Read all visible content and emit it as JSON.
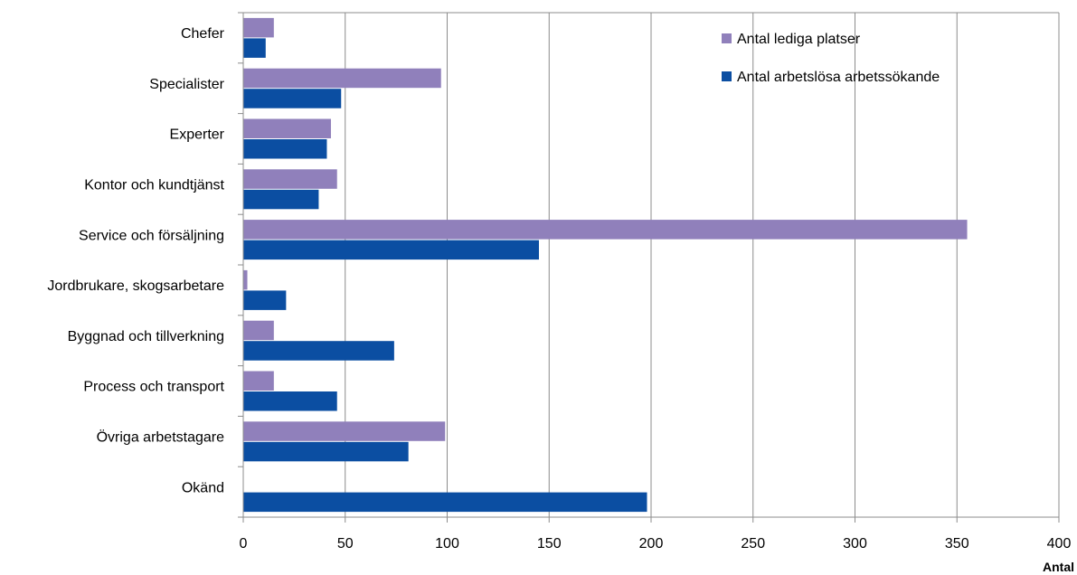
{
  "chart_data": {
    "type": "bar",
    "orientation": "horizontal",
    "categories": [
      "Chefer",
      "Specialister",
      "Experter",
      "Kontor och kundtjänst",
      "Service och försäljning",
      "Jordbrukare, skogsarbetare",
      "Byggnad och tillverkning",
      "Process och transport",
      "Övriga arbetstagare",
      "Okänd"
    ],
    "series": [
      {
        "name": "Antal lediga platser",
        "color": "#9080bb",
        "values": [
          15,
          97,
          43,
          46,
          355,
          2,
          15,
          15,
          99,
          0
        ]
      },
      {
        "name": "Antal arbetslösa arbetssökande",
        "color": "#0b4ea2",
        "values": [
          11,
          48,
          41,
          37,
          145,
          21,
          74,
          46,
          81,
          198
        ]
      }
    ],
    "xlim": [
      0,
      400
    ],
    "xticks": [
      "0",
      "50",
      "100",
      "150",
      "200",
      "250",
      "300",
      "350",
      "400"
    ],
    "xlabel": "Antal",
    "grid": "vertical",
    "legend_position": "top-right"
  }
}
